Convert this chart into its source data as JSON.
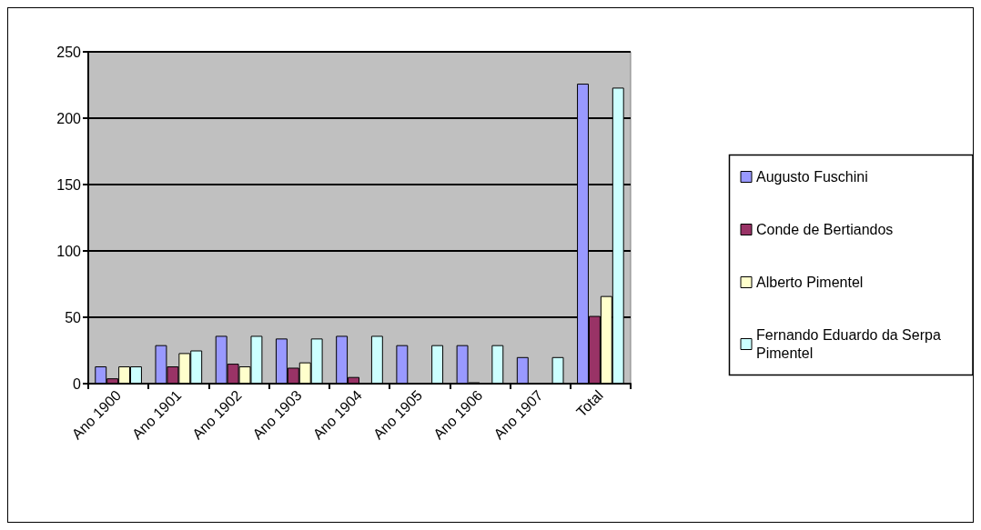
{
  "chart_data": {
    "type": "bar",
    "categories": [
      "Ano 1900",
      "Ano 1901",
      "Ano 1902",
      "Ano 1903",
      "Ano 1904",
      "Ano 1905",
      "Ano 1906",
      "Ano 1907",
      "Total"
    ],
    "series": [
      {
        "name": "Augusto Fuschini",
        "color": "#9999ff",
        "values": [
          13,
          29,
          36,
          34,
          36,
          29,
          29,
          20,
          226
        ]
      },
      {
        "name": "Conde de Bertiandos",
        "color": "#993366",
        "values": [
          4,
          13,
          15,
          12,
          5,
          null,
          1,
          null,
          51
        ]
      },
      {
        "name": "Alberto Pimentel",
        "color": "#ffffcc",
        "values": [
          13,
          23,
          13,
          16,
          null,
          null,
          null,
          null,
          66
        ]
      },
      {
        "name": "Fernando Eduardo da Serpa Pimentel",
        "color": "#ccffff",
        "values": [
          13,
          25,
          36,
          34,
          36,
          29,
          29,
          20,
          223
        ]
      }
    ],
    "ylim": [
      0,
      250
    ],
    "yticks": [
      0,
      50,
      100,
      150,
      200,
      250
    ],
    "grid": "y",
    "legend": "right"
  }
}
